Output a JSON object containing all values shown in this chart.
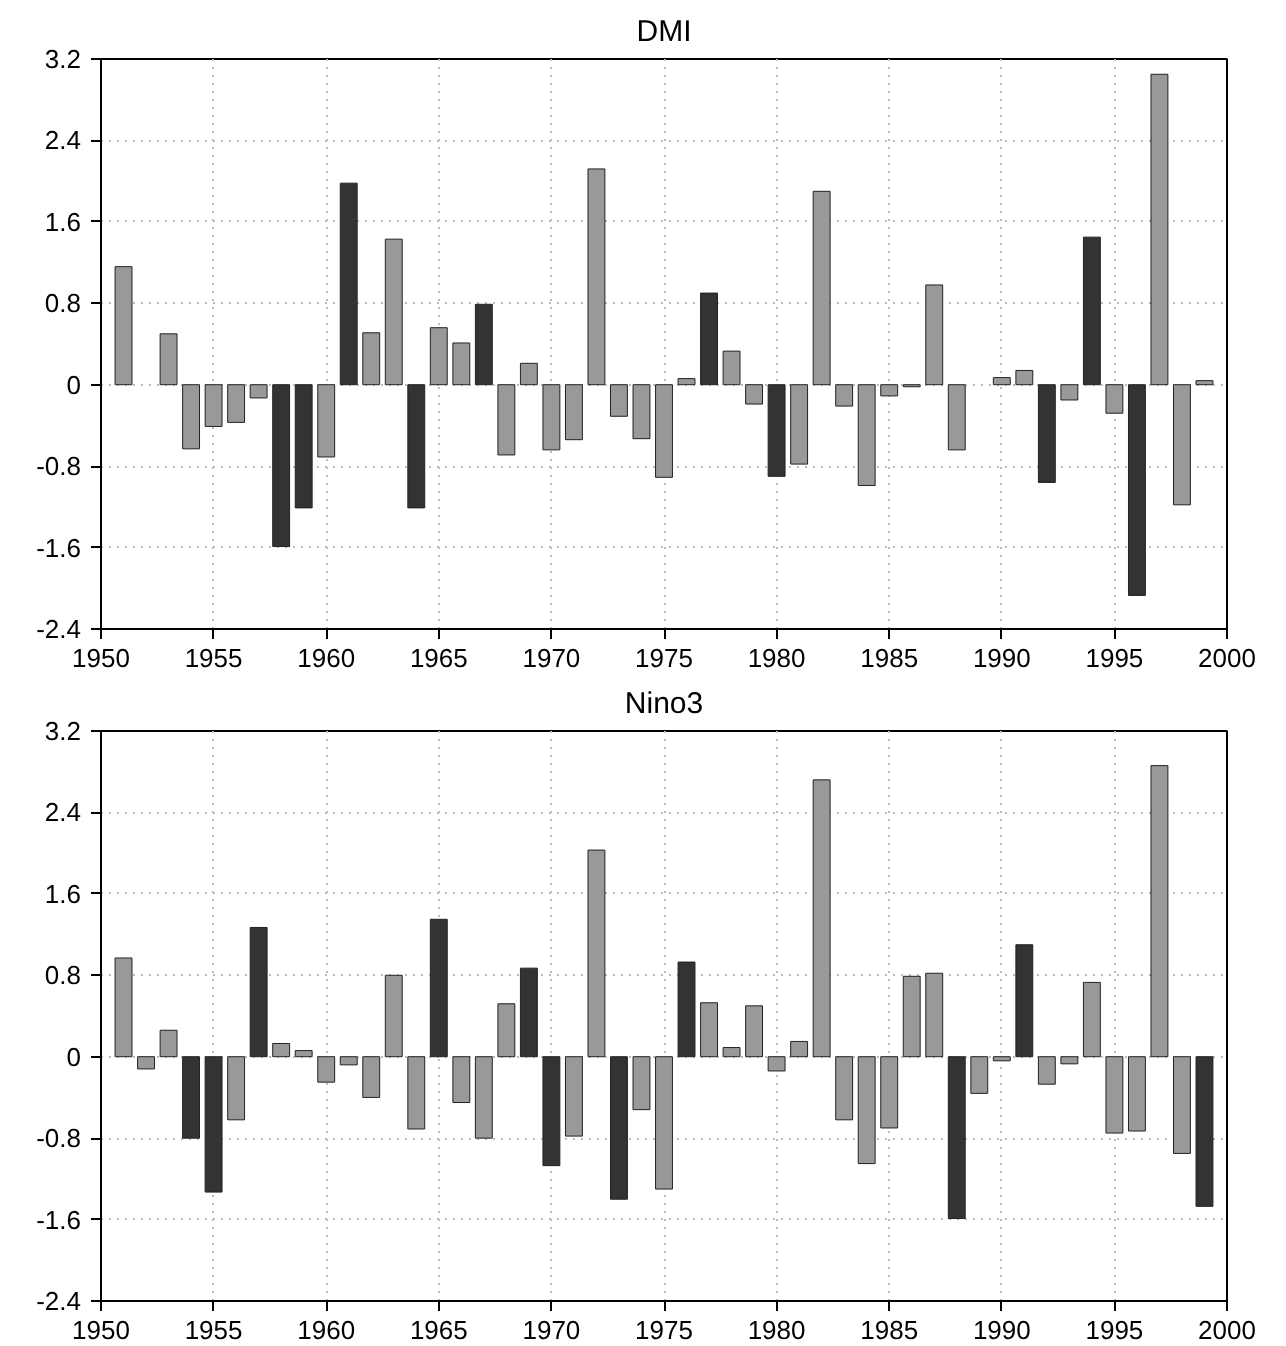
{
  "chart_data": [
    {
      "type": "bar",
      "title": "DMI",
      "x": [
        1951,
        1952,
        1953,
        1954,
        1955,
        1956,
        1957,
        1958,
        1959,
        1960,
        1961,
        1962,
        1963,
        1964,
        1965,
        1966,
        1967,
        1968,
        1969,
        1970,
        1971,
        1972,
        1973,
        1974,
        1975,
        1976,
        1977,
        1978,
        1979,
        1980,
        1981,
        1982,
        1983,
        1984,
        1985,
        1986,
        1987,
        1988,
        1989,
        1990,
        1991,
        1992,
        1993,
        1994,
        1995,
        1996,
        1997,
        1998,
        1999
      ],
      "values": [
        1.16,
        null,
        0.5,
        -0.63,
        -0.41,
        -0.37,
        -0.13,
        -1.59,
        -1.21,
        -0.71,
        1.98,
        0.51,
        1.43,
        -1.21,
        0.56,
        0.41,
        0.79,
        -0.69,
        0.21,
        -0.64,
        -0.54,
        2.12,
        -0.31,
        -0.53,
        -0.91,
        0.06,
        0.9,
        0.33,
        -0.19,
        -0.9,
        -0.78,
        1.9,
        -0.21,
        -0.99,
        -0.11,
        -0.02,
        0.98,
        -0.64,
        null,
        0.07,
        0.14,
        -0.96,
        -0.15,
        1.45,
        -0.28,
        -2.07,
        3.05,
        -1.18,
        0.04
      ],
      "colors": [
        "#999999",
        "#999999",
        "#999999",
        "#999999",
        "#999999",
        "#999999",
        "#999999",
        "#333333",
        "#333333",
        "#999999",
        "#333333",
        "#999999",
        "#999999",
        "#333333",
        "#999999",
        "#999999",
        "#333333",
        "#999999",
        "#999999",
        "#999999",
        "#999999",
        "#999999",
        "#999999",
        "#999999",
        "#999999",
        "#999999",
        "#333333",
        "#999999",
        "#999999",
        "#333333",
        "#999999",
        "#999999",
        "#999999",
        "#999999",
        "#999999",
        "#999999",
        "#999999",
        "#999999",
        "#999999",
        "#999999",
        "#999999",
        "#333333",
        "#999999",
        "#333333",
        "#999999",
        "#333333",
        "#999999",
        "#999999",
        "#999999"
      ],
      "xlim": [
        1950,
        2000
      ],
      "xticks": [
        1950,
        1955,
        1960,
        1965,
        1970,
        1975,
        1980,
        1985,
        1990,
        1995,
        2000
      ],
      "ylim": [
        -2.4,
        3.2
      ],
      "yticks": [
        -2.4,
        -1.6,
        -0.8,
        0,
        0.8,
        1.6,
        2.4,
        3.2
      ],
      "grid": true
    },
    {
      "type": "bar",
      "title": "Nino3",
      "x": [
        1951,
        1952,
        1953,
        1954,
        1955,
        1956,
        1957,
        1958,
        1959,
        1960,
        1961,
        1962,
        1963,
        1964,
        1965,
        1966,
        1967,
        1968,
        1969,
        1970,
        1971,
        1972,
        1973,
        1974,
        1975,
        1976,
        1977,
        1978,
        1979,
        1980,
        1981,
        1982,
        1983,
        1984,
        1985,
        1986,
        1987,
        1988,
        1989,
        1990,
        1991,
        1992,
        1993,
        1994,
        1995,
        1996,
        1997,
        1998,
        1999
      ],
      "values": [
        0.97,
        -0.12,
        0.26,
        -0.8,
        -1.33,
        -0.62,
        1.27,
        0.13,
        0.06,
        -0.25,
        -0.08,
        -0.4,
        0.8,
        -0.71,
        1.35,
        -0.45,
        -0.8,
        0.52,
        0.87,
        -1.07,
        -0.78,
        2.03,
        -1.4,
        -0.52,
        -1.3,
        0.93,
        0.53,
        0.09,
        0.5,
        -0.14,
        0.15,
        2.72,
        -0.62,
        -1.05,
        -0.7,
        0.79,
        0.82,
        -1.59,
        -0.36,
        -0.04,
        1.1,
        -0.27,
        -0.07,
        0.73,
        -0.75,
        -0.73,
        2.86,
        -0.95,
        -1.47
      ],
      "colors": [
        "#999999",
        "#999999",
        "#999999",
        "#333333",
        "#333333",
        "#999999",
        "#333333",
        "#999999",
        "#999999",
        "#999999",
        "#999999",
        "#999999",
        "#999999",
        "#999999",
        "#333333",
        "#999999",
        "#999999",
        "#999999",
        "#333333",
        "#333333",
        "#999999",
        "#999999",
        "#333333",
        "#999999",
        "#999999",
        "#333333",
        "#999999",
        "#999999",
        "#999999",
        "#999999",
        "#999999",
        "#999999",
        "#999999",
        "#999999",
        "#999999",
        "#999999",
        "#999999",
        "#333333",
        "#999999",
        "#999999",
        "#333333",
        "#999999",
        "#999999",
        "#999999",
        "#999999",
        "#999999",
        "#999999",
        "#999999",
        "#333333"
      ],
      "xlim": [
        1950,
        2000
      ],
      "xticks": [
        1950,
        1955,
        1960,
        1965,
        1970,
        1975,
        1980,
        1985,
        1990,
        1995,
        2000
      ],
      "ylim": [
        -2.4,
        3.2
      ],
      "yticks": [
        -2.4,
        -1.6,
        -0.8,
        0,
        0.8,
        1.6,
        2.4,
        3.2
      ],
      "grid": true
    }
  ]
}
